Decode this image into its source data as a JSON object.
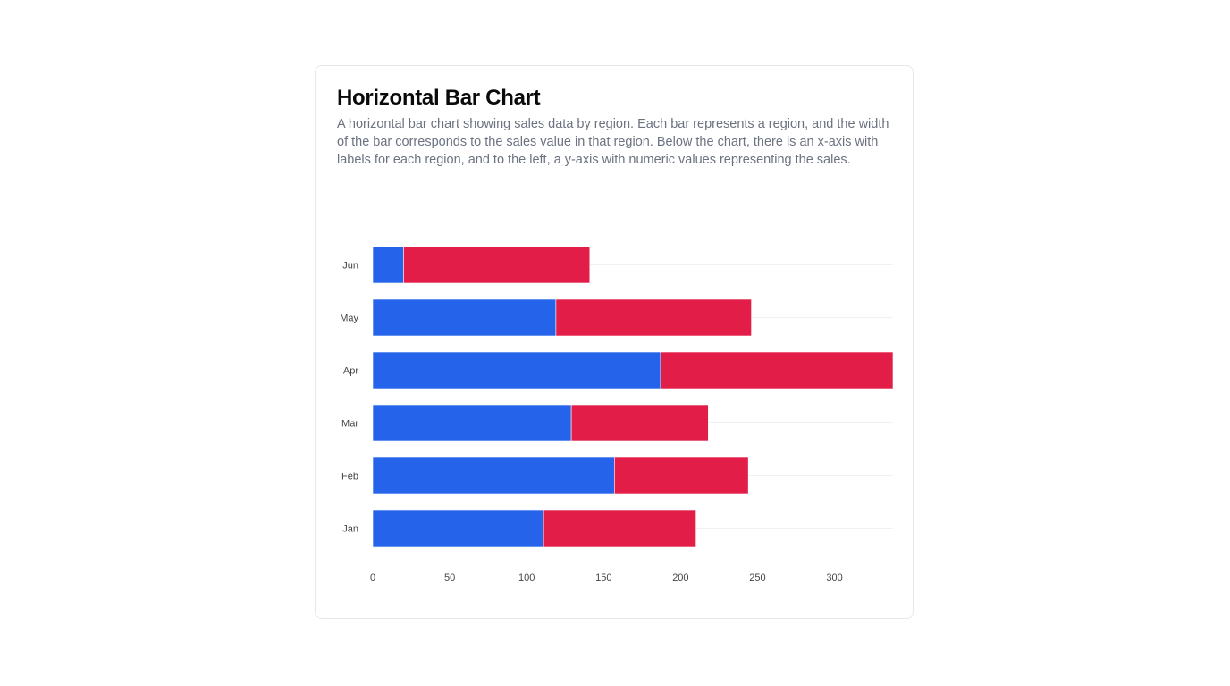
{
  "card": {
    "title": "Horizontal Bar Chart",
    "description": "A horizontal bar chart showing sales data by region. Each bar represents a region, and the width of the bar corresponds to the sales value in that region. Below the chart, there is an x-axis with labels for each region, and to the left, a y-axis with numeric values representing the sales."
  },
  "chart_data": {
    "type": "bar",
    "orientation": "horizontal",
    "stacked": true,
    "categories": [
      "Jan",
      "Feb",
      "Mar",
      "Apr",
      "May",
      "Jun"
    ],
    "series": [
      {
        "values": [
          111,
          157,
          129,
          187,
          119,
          20
        ],
        "color": "#2563eb"
      },
      {
        "values": [
          99,
          87,
          89,
          151,
          127,
          121
        ],
        "color": "#e11d48"
      }
    ],
    "xlim": [
      0,
      338
    ],
    "xticks": [
      0,
      50,
      100,
      150,
      200,
      250,
      300
    ],
    "grid": true
  }
}
